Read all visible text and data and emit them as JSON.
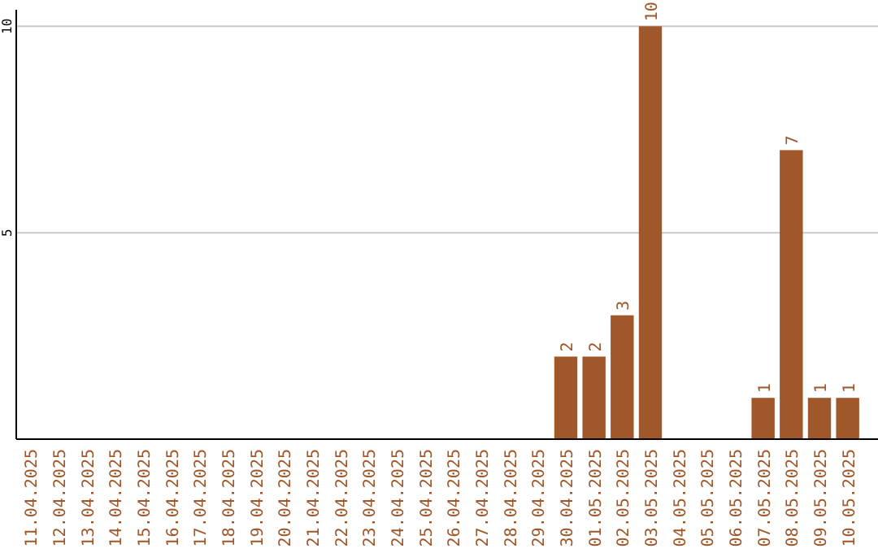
{
  "chart_data": {
    "type": "bar",
    "categories": [
      "11.04.2025",
      "12.04.2025",
      "13.04.2025",
      "14.04.2025",
      "15.04.2025",
      "16.04.2025",
      "17.04.2025",
      "18.04.2025",
      "19.04.2025",
      "20.04.2025",
      "21.04.2025",
      "22.04.2025",
      "23.04.2025",
      "24.04.2025",
      "25.04.2025",
      "26.04.2025",
      "27.04.2025",
      "28.04.2025",
      "29.04.2025",
      "30.04.2025",
      "01.05.2025",
      "02.05.2025",
      "03.05.2025",
      "04.05.2025",
      "05.05.2025",
      "06.05.2025",
      "07.05.2025",
      "08.05.2025",
      "09.05.2025",
      "10.05.2025"
    ],
    "values": [
      0,
      0,
      0,
      0,
      0,
      0,
      0,
      0,
      0,
      0,
      0,
      0,
      0,
      0,
      0,
      0,
      0,
      0,
      0,
      2,
      2,
      3,
      10,
      0,
      0,
      0,
      1,
      7,
      1,
      1
    ],
    "value_labels": [
      null,
      null,
      null,
      null,
      null,
      null,
      null,
      null,
      null,
      null,
      null,
      null,
      null,
      null,
      null,
      null,
      null,
      null,
      null,
      "2",
      "2",
      "3",
      "10",
      null,
      null,
      null,
      "1",
      "7",
      "1",
      "1"
    ],
    "color": "#a0572a",
    "ylim": [
      0,
      10.4
    ],
    "yticks": [
      {
        "value": 0,
        "label": null
      },
      5,
      10
    ],
    "grid": "y"
  }
}
